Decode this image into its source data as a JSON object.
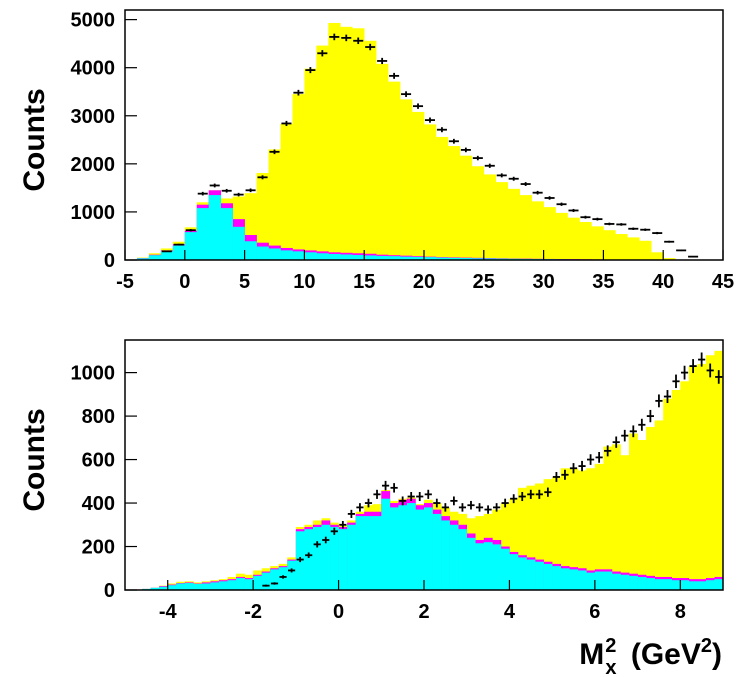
{
  "colors": {
    "total": "#ffff00",
    "component1": "#ff00ff",
    "component2": "#00ffff",
    "data": "#000000"
  },
  "chart_data": [
    {
      "type": "bar",
      "histogram": true,
      "ylabel": "Counts",
      "xlim": [
        -5,
        45
      ],
      "ylim": [
        0,
        5200
      ],
      "xticks": [
        -5,
        0,
        5,
        10,
        15,
        20,
        25,
        30,
        35,
        40,
        45
      ],
      "yticks": [
        0,
        1000,
        2000,
        3000,
        4000,
        5000
      ],
      "bin_width": 1,
      "bin_starts": [
        -5,
        -4,
        -3,
        -2,
        -1,
        0,
        1,
        2,
        3,
        4,
        5,
        6,
        7,
        8,
        9,
        10,
        11,
        12,
        13,
        14,
        15,
        16,
        17,
        18,
        19,
        20,
        21,
        22,
        23,
        24,
        25,
        26,
        27,
        28,
        29,
        30,
        31,
        32,
        33,
        34,
        35,
        36,
        37,
        38,
        39,
        40,
        41,
        42,
        43,
        44
      ],
      "series": [
        {
          "values": [
            0,
            50,
            140,
            240,
            380,
            680,
            1200,
            1450,
            1280,
            1320,
            1390,
            1810,
            2300,
            2830,
            3450,
            3980,
            4460,
            4930,
            4850,
            4820,
            4560,
            4080,
            3710,
            3340,
            3080,
            2820,
            2560,
            2370,
            2170,
            1950,
            1780,
            1620,
            1480,
            1350,
            1220,
            1100,
            980,
            880,
            790,
            700,
            620,
            540,
            470,
            400,
            160,
            40,
            0,
            0,
            0,
            0
          ]
        },
        {
          "values": [
            0,
            40,
            110,
            200,
            330,
            610,
            1150,
            1450,
            1180,
            850,
            520,
            360,
            300,
            250,
            220,
            200,
            180,
            160,
            150,
            140,
            130,
            110,
            100,
            90,
            80,
            70,
            60,
            55,
            50,
            45,
            40,
            35,
            30,
            28,
            25,
            22,
            20,
            18,
            15,
            12,
            10,
            8,
            6,
            5,
            3,
            2,
            0,
            0,
            0,
            0
          ]
        },
        {
          "values": [
            0,
            35,
            100,
            180,
            300,
            580,
            1080,
            1350,
            1080,
            690,
            390,
            280,
            240,
            200,
            180,
            160,
            140,
            125,
            115,
            105,
            95,
            85,
            80,
            70,
            65,
            60,
            50,
            45,
            40,
            35,
            32,
            28,
            25,
            22,
            20,
            18,
            15,
            12,
            10,
            8,
            6,
            5,
            4,
            3,
            2,
            0,
            0,
            0,
            0,
            0
          ]
        },
        {
          "values": [
            0,
            0,
            0,
            180,
            320,
            620,
            1380,
            1550,
            1440,
            1360,
            1450,
            1720,
            2250,
            2840,
            3480,
            3950,
            4300,
            4640,
            4620,
            4560,
            4430,
            4140,
            3830,
            3450,
            3200,
            2910,
            2710,
            2470,
            2290,
            2120,
            1960,
            1760,
            1690,
            1580,
            1400,
            1290,
            1160,
            1030,
            890,
            850,
            750,
            740,
            650,
            630,
            560,
            380,
            200,
            70,
            0,
            0
          ]
        }
      ]
    },
    {
      "type": "bar",
      "histogram": true,
      "ylabel": "Counts",
      "xlabel": "M_x^2 (GeV^2)",
      "xlim": [
        -5,
        9
      ],
      "ylim": [
        0,
        1150
      ],
      "xticks": [
        -4,
        -2,
        0,
        2,
        4,
        6,
        8
      ],
      "yticks": [
        0,
        200,
        400,
        600,
        800,
        1000
      ],
      "bin_width": 0.2,
      "bin_starts": [
        -4.6,
        -4.4,
        -4.2,
        -4,
        -3.8,
        -3.6,
        -3.4,
        -3.2,
        -3,
        -2.8,
        -2.6,
        -2.4,
        -2.2,
        -2,
        -1.8,
        -1.6,
        -1.4,
        -1.2,
        -1,
        -0.8,
        -0.6,
        -0.4,
        -0.2,
        0,
        0.2,
        0.4,
        0.6,
        0.8,
        1,
        1.2,
        1.4,
        1.6,
        1.8,
        2,
        2.2,
        2.4,
        2.6,
        2.8,
        3,
        3.2,
        3.4,
        3.6,
        3.8,
        4,
        4.2,
        4.4,
        4.6,
        4.8,
        5,
        5.2,
        5.4,
        5.6,
        5.8,
        6,
        6.2,
        6.4,
        6.6,
        6.8,
        7,
        7.2,
        7.4,
        7.6,
        7.8,
        8,
        8.2,
        8.4,
        8.6,
        8.8
      ],
      "series": [
        {
          "values": [
            5,
            10,
            20,
            30,
            38,
            40,
            35,
            40,
            45,
            50,
            60,
            75,
            70,
            90,
            100,
            110,
            120,
            150,
            290,
            300,
            320,
            330,
            310,
            300,
            320,
            360,
            390,
            395,
            460,
            410,
            420,
            425,
            395,
            415,
            400,
            380,
            360,
            350,
            330,
            340,
            350,
            370,
            400,
            420,
            470,
            480,
            490,
            510,
            520,
            560,
            560,
            550,
            560,
            580,
            660,
            670,
            620,
            720,
            690,
            750,
            780,
            880,
            920,
            960,
            1030,
            1040,
            1080,
            1100
          ]
        },
        {
          "values": [
            5,
            10,
            18,
            25,
            32,
            35,
            30,
            35,
            40,
            45,
            50,
            60,
            55,
            70,
            85,
            100,
            110,
            140,
            280,
            290,
            300,
            320,
            300,
            290,
            310,
            350,
            360,
            360,
            455,
            400,
            415,
            420,
            390,
            400,
            370,
            340,
            320,
            300,
            260,
            230,
            240,
            230,
            200,
            175,
            160,
            150,
            140,
            130,
            120,
            110,
            105,
            100,
            90,
            95,
            95,
            85,
            80,
            75,
            70,
            65,
            60,
            60,
            55,
            55,
            50,
            50,
            55,
            60
          ]
        },
        {
          "values": [
            5,
            10,
            15,
            22,
            30,
            32,
            28,
            30,
            35,
            40,
            45,
            55,
            50,
            65,
            80,
            95,
            105,
            135,
            270,
            280,
            290,
            300,
            290,
            280,
            300,
            340,
            340,
            340,
            420,
            380,
            390,
            400,
            370,
            380,
            350,
            320,
            300,
            280,
            240,
            215,
            220,
            210,
            190,
            165,
            150,
            140,
            130,
            120,
            110,
            100,
            95,
            90,
            80,
            85,
            85,
            75,
            70,
            65,
            60,
            55,
            50,
            50,
            45,
            45,
            40,
            40,
            45,
            50
          ]
        },
        {
          "values": [
            0,
            0,
            0,
            0,
            0,
            0,
            0,
            0,
            0,
            0,
            0,
            0,
            0,
            0,
            20,
            30,
            60,
            90,
            140,
            160,
            210,
            230,
            270,
            300,
            350,
            380,
            400,
            440,
            480,
            470,
            410,
            430,
            430,
            440,
            400,
            380,
            410,
            380,
            390,
            380,
            370,
            380,
            400,
            420,
            430,
            440,
            440,
            450,
            520,
            530,
            560,
            570,
            600,
            610,
            640,
            680,
            710,
            730,
            760,
            800,
            870,
            890,
            960,
            1000,
            1030,
            1060,
            1010,
            980
          ]
        }
      ]
    }
  ]
}
